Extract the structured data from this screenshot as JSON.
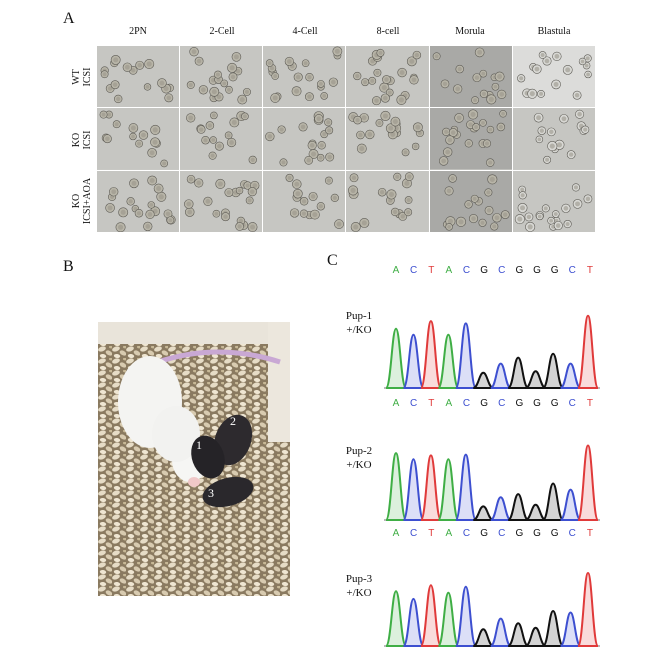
{
  "panels": {
    "a": "A",
    "b": "B",
    "c": "C"
  },
  "stages": [
    "2PN",
    "2-Cell",
    "4-Cell",
    "8-cell",
    "Morula",
    "Blastula"
  ],
  "groups": [
    {
      "line1": "WT",
      "line2": "ICSI"
    },
    {
      "line1": "KO",
      "line2": "ICSI"
    },
    {
      "line1": "KO",
      "line2": "ICSI+AOA"
    }
  ],
  "photo_labels": [
    "1",
    "2",
    "3"
  ],
  "sequence": [
    "A",
    "C",
    "T",
    "A",
    "C",
    "G",
    "C",
    "G",
    "G",
    "G",
    "C",
    "T"
  ],
  "pups": [
    {
      "name": "Pup-1",
      "genotype": "+/KO"
    },
    {
      "name": "Pup-2",
      "genotype": "+/KO"
    },
    {
      "name": "Pup-3",
      "genotype": "+/KO"
    }
  ],
  "colors": {
    "A": "#3fae45",
    "C": "#3d4fd0",
    "G": "#111111",
    "T": "#e03a3a"
  }
}
